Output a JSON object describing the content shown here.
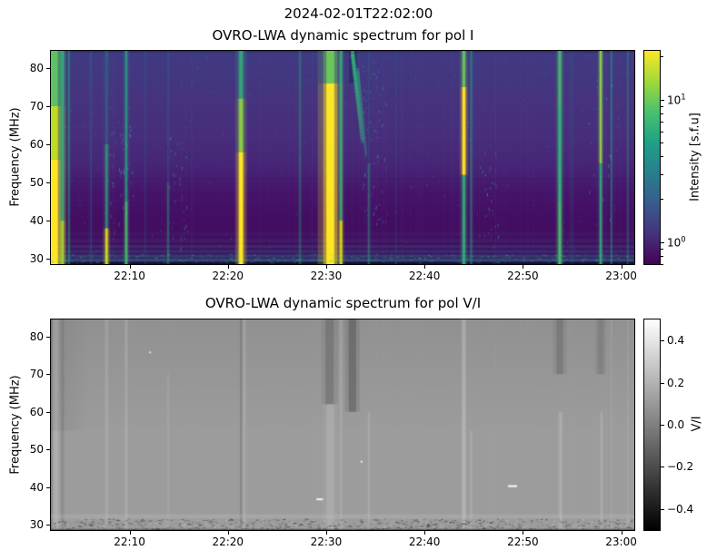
{
  "figure": {
    "suptitle": "2024-02-01T22:02:00"
  },
  "chart_data": [
    {
      "type": "heatmap",
      "title": "OVRO-LWA dynamic spectrum for pol I",
      "ylabel": "Frequency (MHz)",
      "x_start": "22:02:00",
      "x_end": "23:01:20",
      "x_ticks": [
        "22:10",
        "22:20",
        "22:30",
        "22:40",
        "22:50",
        "23:00"
      ],
      "y_ticks": [
        30,
        40,
        50,
        60,
        70,
        80
      ],
      "y_range": [
        28.6,
        84.5
      ],
      "grid": false,
      "colormap": "viridis",
      "colorbar": {
        "label": "Intensity [s.f.u]",
        "scale": "log",
        "range_sfu": [
          0.7,
          22
        ],
        "major_tick_exponents": [
          1,
          0
        ],
        "stops": [
          "#440154",
          "#46327e",
          "#365c8d",
          "#277f8e",
          "#1fa187",
          "#4ac16d",
          "#a0da39",
          "#fde725"
        ]
      },
      "render": {
        "bg_stops": [
          [
            84.5,
            "#3f3b83"
          ],
          [
            72,
            "#46337e"
          ],
          [
            62,
            "#472e7c"
          ],
          [
            54,
            "#472476"
          ],
          [
            47,
            "#45146a"
          ],
          [
            40,
            "#430d63"
          ],
          [
            34,
            "#430f60"
          ],
          [
            31,
            "#3f1260"
          ],
          [
            28.6,
            "#36104f"
          ]
        ],
        "hairline_color": "#7a6fc0",
        "hairline_count": 110,
        "top_edge_band": {
          "f0": 84.1,
          "f1": 84.5,
          "color": "#1a1245",
          "alpha": 0.4
        },
        "h_lines": [
          {
            "f": 64.5,
            "color": "#6f64b8",
            "alpha": 0.1
          },
          {
            "f": 51.0,
            "color": "#2a0845",
            "alpha": 0.18
          },
          {
            "f": 45.5,
            "color": "#6f64b8",
            "alpha": 0.08
          }
        ],
        "h_bands": [
          {
            "f0": 28.6,
            "f1": 29.2,
            "color": "#120c3a",
            "alpha": 0.9
          },
          {
            "f0": 29.2,
            "f1": 30.1,
            "color": "#2a788e",
            "alpha": 0.5
          },
          {
            "f0": 30.3,
            "f1": 31.1,
            "color": "#2a788e",
            "alpha": 0.38
          },
          {
            "f0": 31.5,
            "f1": 32.3,
            "color": "#31688e",
            "alpha": 0.3
          },
          {
            "f0": 32.8,
            "f1": 33.6,
            "color": "#2a788e",
            "alpha": 0.24
          },
          {
            "f0": 34.3,
            "f1": 35.2,
            "color": "#355f8d",
            "alpha": 0.18
          },
          {
            "f0": 36.0,
            "f1": 37.0,
            "color": "#355f8d",
            "alpha": 0.1
          }
        ],
        "noise_strip": {
          "f0": 29.0,
          "f1": 31.3,
          "color": "#35b779",
          "alpha": 0.5,
          "count": 420
        },
        "speckle": {
          "color": "#3ec6a8",
          "alpha": 0.3,
          "count": 260
        },
        "speckle_clusters": [
          {
            "t": "22:08:00",
            "span_s": 150,
            "f0": 34,
            "f1": 70,
            "n": 60
          },
          {
            "t": "22:14:00",
            "span_s": 120,
            "f0": 32,
            "f1": 62,
            "n": 40
          },
          {
            "t": "22:33:30",
            "span_s": 160,
            "f0": 38,
            "f1": 82,
            "n": 70
          },
          {
            "t": "22:45:30",
            "span_s": 120,
            "f0": 33,
            "f1": 60,
            "n": 40
          },
          {
            "t": "22:56:30",
            "span_s": 200,
            "f0": 40,
            "f1": 80,
            "n": 30
          }
        ],
        "dark_patch": {
          "t": "22:32:20",
          "dur_s": 45,
          "f0": 76,
          "f1": 84.5,
          "color": "#16224e",
          "alpha": 0.5
        }
      },
      "bursts": [
        {
          "t": "22:02:20",
          "dur_s": 45,
          "peak_sfu": 22,
          "profile": [
            [
              28.6,
              56,
              "#fde725",
              1.0
            ],
            [
              56,
              70,
              "#c2df23",
              0.95
            ],
            [
              70,
              84.5,
              "#5ec962",
              0.9
            ]
          ]
        },
        {
          "t": "22:03:10",
          "dur_s": 15,
          "peak_sfu": 6,
          "profile": [
            [
              28.6,
              40,
              "#aadc32",
              0.8
            ],
            [
              40,
              84.5,
              "#35b779",
              0.75
            ]
          ]
        },
        {
          "t": "22:03:50",
          "dur_s": 8,
          "peak_sfu": 3,
          "profile": [
            [
              28.6,
              84.5,
              "#27ad81",
              0.4
            ]
          ]
        },
        {
          "t": "22:06:05",
          "dur_s": 8,
          "peak_sfu": 2,
          "profile": [
            [
              28.6,
              84.5,
              "#26828e",
              0.22
            ]
          ]
        },
        {
          "t": "22:07:40",
          "dur_s": 14,
          "peak_sfu": 8,
          "profile": [
            [
              28.6,
              38,
              "#d8e219",
              0.85
            ],
            [
              38,
              60,
              "#2fb47c",
              0.55
            ],
            [
              60,
              84.5,
              "#277f8e",
              0.35
            ]
          ]
        },
        {
          "t": "22:09:40",
          "dur_s": 12,
          "peak_sfu": 6,
          "profile": [
            [
              28.6,
              45,
              "#4ac16d",
              0.8
            ],
            [
              45,
              84.5,
              "#27ad81",
              0.6
            ]
          ]
        },
        {
          "t": "22:11:35",
          "dur_s": 8,
          "peak_sfu": 2,
          "profile": [
            [
              28.6,
              84.5,
              "#26828e",
              0.15
            ]
          ]
        },
        {
          "t": "22:13:55",
          "dur_s": 8,
          "peak_sfu": 3,
          "profile": [
            [
              28.6,
              50,
              "#2fb47c",
              0.35
            ],
            [
              50,
              84.5,
              "#277f8e",
              0.2
            ]
          ]
        },
        {
          "t": "22:21:20",
          "dur_s": 22,
          "peak_sfu": 20,
          "profile": [
            [
              28.6,
              58,
              "#fde725",
              1.0
            ],
            [
              58,
              72,
              "#8fd744",
              0.85
            ],
            [
              72,
              84.5,
              "#35b779",
              0.7
            ]
          ]
        },
        {
          "t": "22:27:20",
          "dur_s": 10,
          "peak_sfu": 3,
          "profile": [
            [
              28.6,
              84.5,
              "#2fb47c",
              0.25
            ]
          ]
        },
        {
          "t": "22:30:25",
          "dur_s": 48,
          "peak_sfu": 22,
          "profile": [
            [
              28.6,
              76,
              "#fde725",
              1.0
            ],
            [
              76,
              84.5,
              "#6ece58",
              0.9
            ]
          ]
        },
        {
          "t": "22:31:30",
          "dur_s": 12,
          "peak_sfu": 9,
          "profile": [
            [
              28.6,
              40,
              "#d8e219",
              0.85
            ],
            [
              40,
              84.5,
              "#35b779",
              0.7
            ]
          ]
        },
        {
          "t": "22:34:20",
          "dur_s": 10,
          "peak_sfu": 3,
          "profile": [
            [
              28.6,
              55,
              "#2fb47c",
              0.3
            ],
            [
              55,
              84.5,
              "#277f8e",
              0.15
            ]
          ]
        },
        {
          "t": "22:37:05",
          "dur_s": 8,
          "peak_sfu": 2,
          "profile": [
            [
              28.6,
              84.5,
              "#26828e",
              0.12
            ]
          ]
        },
        {
          "t": "22:44:00",
          "dur_s": 16,
          "peak_sfu": 15,
          "profile": [
            [
              28.6,
              52,
              "#35b779",
              0.75
            ],
            [
              52,
              75,
              "#fde725",
              0.95
            ],
            [
              75,
              84.5,
              "#6ece58",
              0.8
            ]
          ]
        },
        {
          "t": "22:44:45",
          "dur_s": 10,
          "peak_sfu": 3,
          "profile": [
            [
              28.6,
              84.5,
              "#27ad81",
              0.35
            ]
          ]
        },
        {
          "t": "22:53:45",
          "dur_s": 16,
          "peak_sfu": 8,
          "profile": [
            [
              28.6,
              45,
              "#4ac16d",
              0.85
            ],
            [
              45,
              70,
              "#35b779",
              0.9
            ],
            [
              70,
              84.5,
              "#4ac16d",
              0.8
            ]
          ]
        },
        {
          "t": "22:55:00",
          "dur_s": 8,
          "peak_sfu": 2,
          "profile": [
            [
              28.6,
              84.5,
              "#26828e",
              0.15
            ]
          ]
        },
        {
          "t": "22:57:55",
          "dur_s": 12,
          "peak_sfu": 7,
          "profile": [
            [
              28.6,
              55,
              "#35b779",
              0.7
            ],
            [
              55,
              84.5,
              "#8fd744",
              0.85
            ]
          ]
        },
        {
          "t": "22:59:00",
          "dur_s": 7,
          "peak_sfu": 3,
          "profile": [
            [
              28.6,
              84.5,
              "#27ad81",
              0.4
            ]
          ]
        },
        {
          "t": "23:00:40",
          "dur_s": 6,
          "peak_sfu": 2,
          "profile": [
            [
              28.6,
              84.5,
              "#27ad81",
              0.28
            ]
          ]
        }
      ],
      "drifting_bursts": [
        {
          "t": "22:32:30",
          "dur_s": 60,
          "f_start": 84.5,
          "f_end": 62,
          "color": "#35b779",
          "alpha": 0.7,
          "w": 4
        },
        {
          "t": "22:33:05",
          "dur_s": 50,
          "f_start": 80,
          "f_end": 58,
          "color": "#2fa085",
          "alpha": 0.45,
          "w": 3
        }
      ]
    },
    {
      "type": "heatmap",
      "title": "OVRO-LWA dynamic spectrum for pol V/I",
      "ylabel": "Frequency (MHz)",
      "x_start": "22:02:00",
      "x_end": "23:01:20",
      "x_ticks": [
        "22:10",
        "22:20",
        "22:30",
        "22:40",
        "22:50",
        "23:00"
      ],
      "y_ticks": [
        30,
        40,
        50,
        60,
        70,
        80
      ],
      "y_range": [
        28.6,
        84.5
      ],
      "grid": false,
      "colormap": "gray",
      "colorbar": {
        "label": "V/I",
        "scale": "linear",
        "range": [
          -0.5,
          0.5
        ],
        "ticks": [
          {
            "v": 0.4,
            "label": "0.4"
          },
          {
            "v": 0.2,
            "label": "0.2"
          },
          {
            "v": 0.0,
            "label": "0.0"
          },
          {
            "v": -0.2,
            "label": "−0.2"
          },
          {
            "v": -0.4,
            "label": "−0.4"
          }
        ],
        "stops": [
          "#000000",
          "#ffffff"
        ]
      },
      "render": {
        "base_color": "#9c9c9c",
        "top_shade": {
          "color": "#7d7d7d",
          "alpha": 0.35,
          "fade_to_f": 55
        },
        "left_shade": {
          "color": "#6f6f6f",
          "alpha": 0.25,
          "until_t": "22:06:00",
          "f0": 55,
          "f1": 84.5
        },
        "hairline_color": "#b8b8b8",
        "hairline_count": 70,
        "noise_band": {
          "f0": 28.6,
          "f1": 31.6,
          "dark": "#2e2e2e",
          "light": "#c9c9c9",
          "count": 900
        },
        "bottom_line": {
          "f": 28.9,
          "color": "#1d1d1d",
          "alpha": 0.55
        },
        "light_band": {
          "f0": 31.6,
          "f1": 32.8,
          "color": "#c4c4c4",
          "alpha": 0.25
        },
        "specks": [
          {
            "t": "22:29:00",
            "f": 37,
            "len_s": 40,
            "color": "#ffffff",
            "alpha": 0.9
          },
          {
            "t": "22:48:30",
            "f": 40.5,
            "len_s": 55,
            "color": "#ffffff",
            "alpha": 0.95
          },
          {
            "t": "22:12:00",
            "f": 76,
            "len_s": 10,
            "color": "#f4f4f4",
            "alpha": 0.8
          },
          {
            "t": "22:33:30",
            "f": 47,
            "len_s": 8,
            "color": "#ffffff",
            "alpha": 0.85
          }
        ]
      },
      "streaks": [
        {
          "t": "22:02:05",
          "dur_s": 12,
          "f0": 28.6,
          "f1": 84.5,
          "shade": "#3a3a3a",
          "alpha": 0.3
        },
        {
          "t": "22:02:25",
          "dur_s": 40,
          "f0": 28.6,
          "f1": 84.5,
          "shade": "#ffffff",
          "alpha": 0.13
        },
        {
          "t": "22:03:10",
          "dur_s": 15,
          "f0": 28.6,
          "f1": 84.5,
          "shade": "#5c5c5c",
          "alpha": 0.18
        },
        {
          "t": "22:07:40",
          "dur_s": 14,
          "f0": 28.6,
          "f1": 84.5,
          "shade": "#ffffff",
          "alpha": 0.1
        },
        {
          "t": "22:09:40",
          "dur_s": 12,
          "f0": 28.6,
          "f1": 84.5,
          "shade": "#ffffff",
          "alpha": 0.12
        },
        {
          "t": "22:13:55",
          "dur_s": 10,
          "f0": 28.6,
          "f1": 70,
          "shade": "#ffffff",
          "alpha": 0.07
        },
        {
          "t": "22:21:20",
          "dur_s": 8,
          "f0": 28.6,
          "f1": 84.5,
          "shade": "#4a4a4a",
          "alpha": 0.25
        },
        {
          "t": "22:21:40",
          "dur_s": 14,
          "f0": 28.6,
          "f1": 84.5,
          "shade": "#ffffff",
          "alpha": 0.1
        },
        {
          "t": "22:30:20",
          "dur_s": 50,
          "f0": 62,
          "f1": 84.5,
          "shade": "#4f4f4f",
          "alpha": 0.3
        },
        {
          "t": "22:30:25",
          "dur_s": 45,
          "f0": 28.6,
          "f1": 62,
          "shade": "#ffffff",
          "alpha": 0.12
        },
        {
          "t": "22:31:30",
          "dur_s": 12,
          "f0": 28.6,
          "f1": 84.5,
          "shade": "#ffffff",
          "alpha": 0.1
        },
        {
          "t": "22:32:40",
          "dur_s": 45,
          "f0": 60,
          "f1": 84.5,
          "shade": "#3f3f3f",
          "alpha": 0.35
        },
        {
          "t": "22:34:20",
          "dur_s": 12,
          "f0": 28.6,
          "f1": 60,
          "shade": "#ffffff",
          "alpha": 0.1
        },
        {
          "t": "22:44:00",
          "dur_s": 18,
          "f0": 28.6,
          "f1": 84.5,
          "shade": "#ffffff",
          "alpha": 0.18
        },
        {
          "t": "22:44:45",
          "dur_s": 12,
          "f0": 28.6,
          "f1": 55,
          "shade": "#ffffff",
          "alpha": 0.1
        },
        {
          "t": "22:53:45",
          "dur_s": 40,
          "f0": 70,
          "f1": 84.5,
          "shade": "#565656",
          "alpha": 0.3
        },
        {
          "t": "22:53:50",
          "dur_s": 16,
          "f0": 28.6,
          "f1": 60,
          "shade": "#ffffff",
          "alpha": 0.14
        },
        {
          "t": "22:57:55",
          "dur_s": 35,
          "f0": 70,
          "f1": 84.5,
          "shade": "#5a5a5a",
          "alpha": 0.25
        },
        {
          "t": "22:58:00",
          "dur_s": 12,
          "f0": 28.6,
          "f1": 60,
          "shade": "#ffffff",
          "alpha": 0.12
        },
        {
          "t": "22:59:00",
          "dur_s": 8,
          "f0": 28.6,
          "f1": 84.5,
          "shade": "#ffffff",
          "alpha": 0.07
        },
        {
          "t": "23:00:40",
          "dur_s": 8,
          "f0": 28.6,
          "f1": 84.5,
          "shade": "#ffffff",
          "alpha": 0.07
        }
      ]
    }
  ]
}
